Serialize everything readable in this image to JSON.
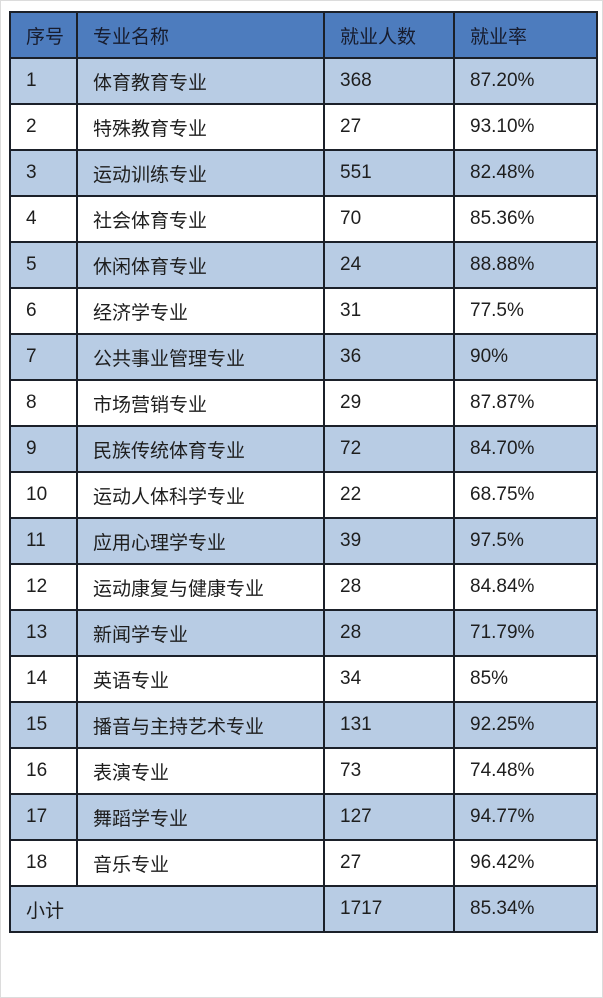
{
  "colors": {
    "header_bg": "#4d7cbe",
    "stripe_bg": "#b8cce4",
    "white_bg": "#ffffff",
    "border": "#1b2029",
    "header_text": "#171c2e",
    "body_text": "#1e1e1e"
  },
  "chart_data": {
    "type": "table",
    "columns": [
      "序号",
      "专业名称",
      "就业人数",
      "就业率"
    ],
    "rows": [
      [
        "1",
        "体育教育专业",
        "368",
        "87.20%"
      ],
      [
        "2",
        "特殊教育专业",
        "27",
        "93.10%"
      ],
      [
        "3",
        "运动训练专业",
        "551",
        "82.48%"
      ],
      [
        "4",
        "社会体育专业",
        "70",
        "85.36%"
      ],
      [
        "5",
        "休闲体育专业",
        "24",
        "88.88%"
      ],
      [
        "6",
        "经济学专业",
        "31",
        "77.5%"
      ],
      [
        "7",
        "公共事业管理专业",
        "36",
        "90%"
      ],
      [
        "8",
        "市场营销专业",
        "29",
        "87.87%"
      ],
      [
        "9",
        "民族传统体育专业",
        "72",
        "84.70%"
      ],
      [
        "10",
        "运动人体科学专业",
        "22",
        "68.75%"
      ],
      [
        "11",
        "应用心理学专业",
        "39",
        "97.5%"
      ],
      [
        "12",
        "运动康复与健康专业",
        "28",
        "84.84%"
      ],
      [
        "13",
        "新闻学专业",
        "28",
        "71.79%"
      ],
      [
        "14",
        "英语专业",
        "34",
        "85%"
      ],
      [
        "15",
        "播音与主持艺术专业",
        "131",
        "92.25%"
      ],
      [
        "16",
        "表演专业",
        "73",
        "74.48%"
      ],
      [
        "17",
        "舞蹈学专业",
        "127",
        "94.77%"
      ],
      [
        "18",
        "音乐专业",
        "27",
        "96.42%"
      ]
    ],
    "footer_row": [
      "小计",
      "1717",
      "85.34%"
    ]
  }
}
